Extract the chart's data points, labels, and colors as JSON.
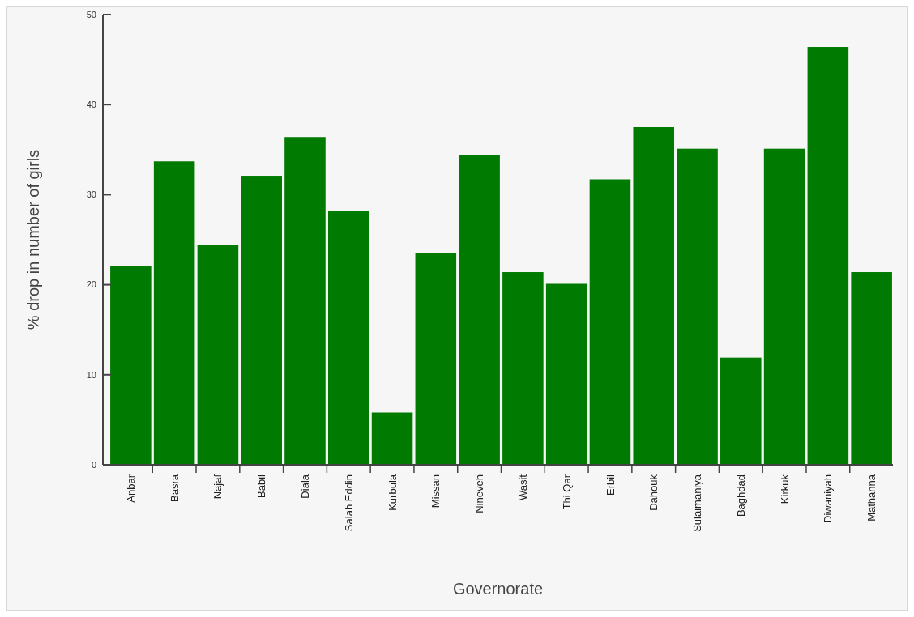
{
  "chart_data": {
    "type": "bar",
    "xlabel": "Governorate",
    "ylabel": "% drop in number of girls",
    "categories": [
      "Anbar",
      "Basra",
      "Najaf",
      "Babil",
      "Diala",
      "Salah Eddin",
      "Kurbula",
      "Missan",
      "Nineveh",
      "Wasit",
      "Thi Qar",
      "Erbil",
      "Dahouk",
      "Sulaimaniya",
      "Baghdad",
      "Kirkuk",
      "Diwaniyah",
      "Mathanna"
    ],
    "values": [
      22.1,
      33.7,
      24.4,
      32.1,
      36.4,
      28.2,
      5.8,
      23.5,
      34.4,
      21.4,
      20.1,
      31.7,
      37.5,
      35.1,
      11.9,
      35.1,
      46.4,
      21.4
    ],
    "color": "#007a00",
    "ylim": [
      0,
      50
    ],
    "yticks": [
      0,
      10,
      20,
      30,
      40,
      50
    ],
    "grid": false
  }
}
